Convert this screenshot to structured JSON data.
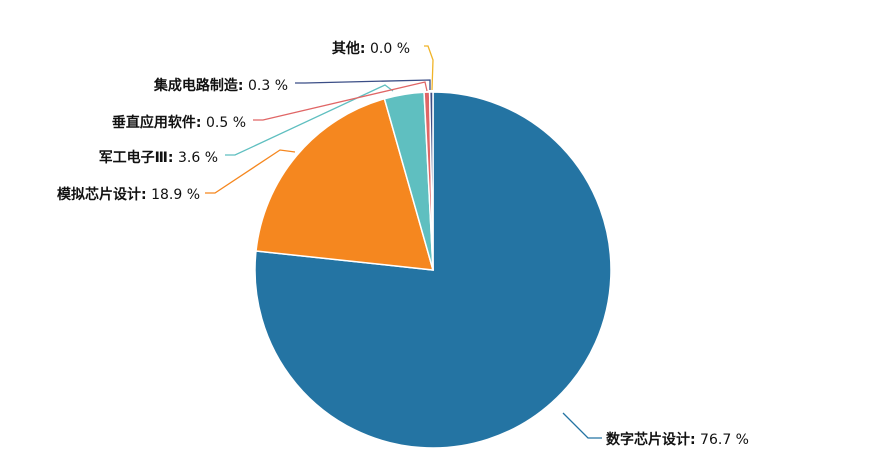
{
  "chart_data": {
    "type": "pie",
    "start_angle_deg": 90,
    "direction": "clockwise",
    "slices": [
      {
        "name": "数字芯片设计",
        "value": 76.7,
        "display": "76.7 %",
        "color": "#2474a3"
      },
      {
        "name": "模拟芯片设计",
        "value": 18.9,
        "display": "18.9 %",
        "color": "#f5871f"
      },
      {
        "name": "军工电子Ⅲ",
        "value": 3.6,
        "display": "3.6 %",
        "color": "#5fbfc0"
      },
      {
        "name": "垂直应用软件",
        "value": 0.5,
        "display": "0.5 %",
        "color": "#e06666"
      },
      {
        "name": "集成电路制造",
        "value": 0.3,
        "display": "0.3 %",
        "color": "#3b4e86"
      },
      {
        "name": "其他",
        "value": 0.0,
        "display": "0.0 %",
        "color": "#f0b429"
      }
    ]
  }
}
